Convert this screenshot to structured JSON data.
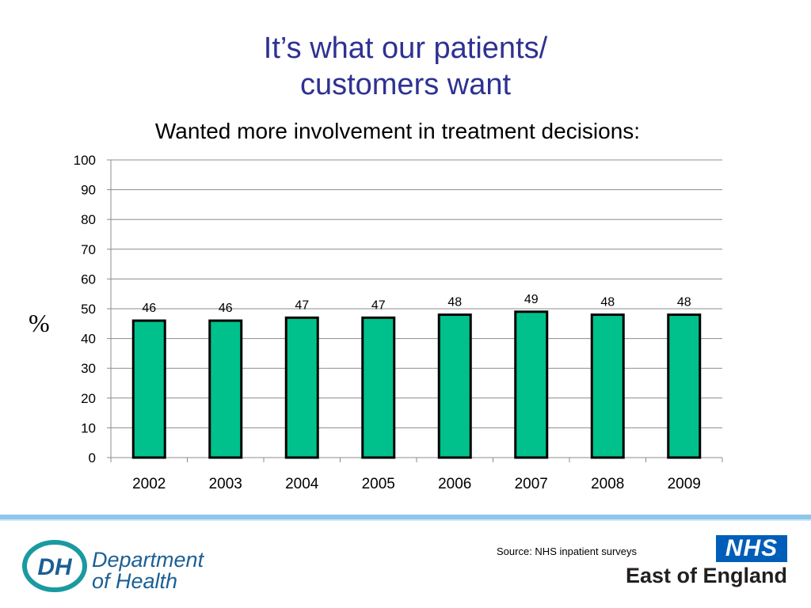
{
  "slide": {
    "title_line1": "It’s what our patients/",
    "title_line2": "customers want",
    "subtitle": "Wanted more involvement in treatment decisions:",
    "ylabel": "%",
    "source": "Source: NHS inpatient surveys"
  },
  "logos": {
    "dh_monogram": "DH",
    "dh_line1": "Department",
    "dh_line2": "of Health",
    "nhs_badge": "NHS",
    "nhs_region": "East of England"
  },
  "colors": {
    "title": "#2e3192",
    "bar_fill": "#00c08b",
    "bar_border": "#000000",
    "band": "#8cc6ec",
    "dh_blue": "#1b5f94",
    "dh_teal": "#1a9aa0",
    "nhs_blue": "#005eb8"
  },
  "chart_data": {
    "type": "bar",
    "categories": [
      "2002",
      "2003",
      "2004",
      "2005",
      "2006",
      "2007",
      "2008",
      "2009"
    ],
    "values": [
      46,
      46,
      47,
      47,
      48,
      49,
      48,
      48
    ],
    "ylim": [
      0,
      100
    ],
    "yticks": [
      0,
      10,
      20,
      30,
      40,
      50,
      60,
      70,
      80,
      90,
      100
    ],
    "grid": true,
    "data_labels": true
  }
}
